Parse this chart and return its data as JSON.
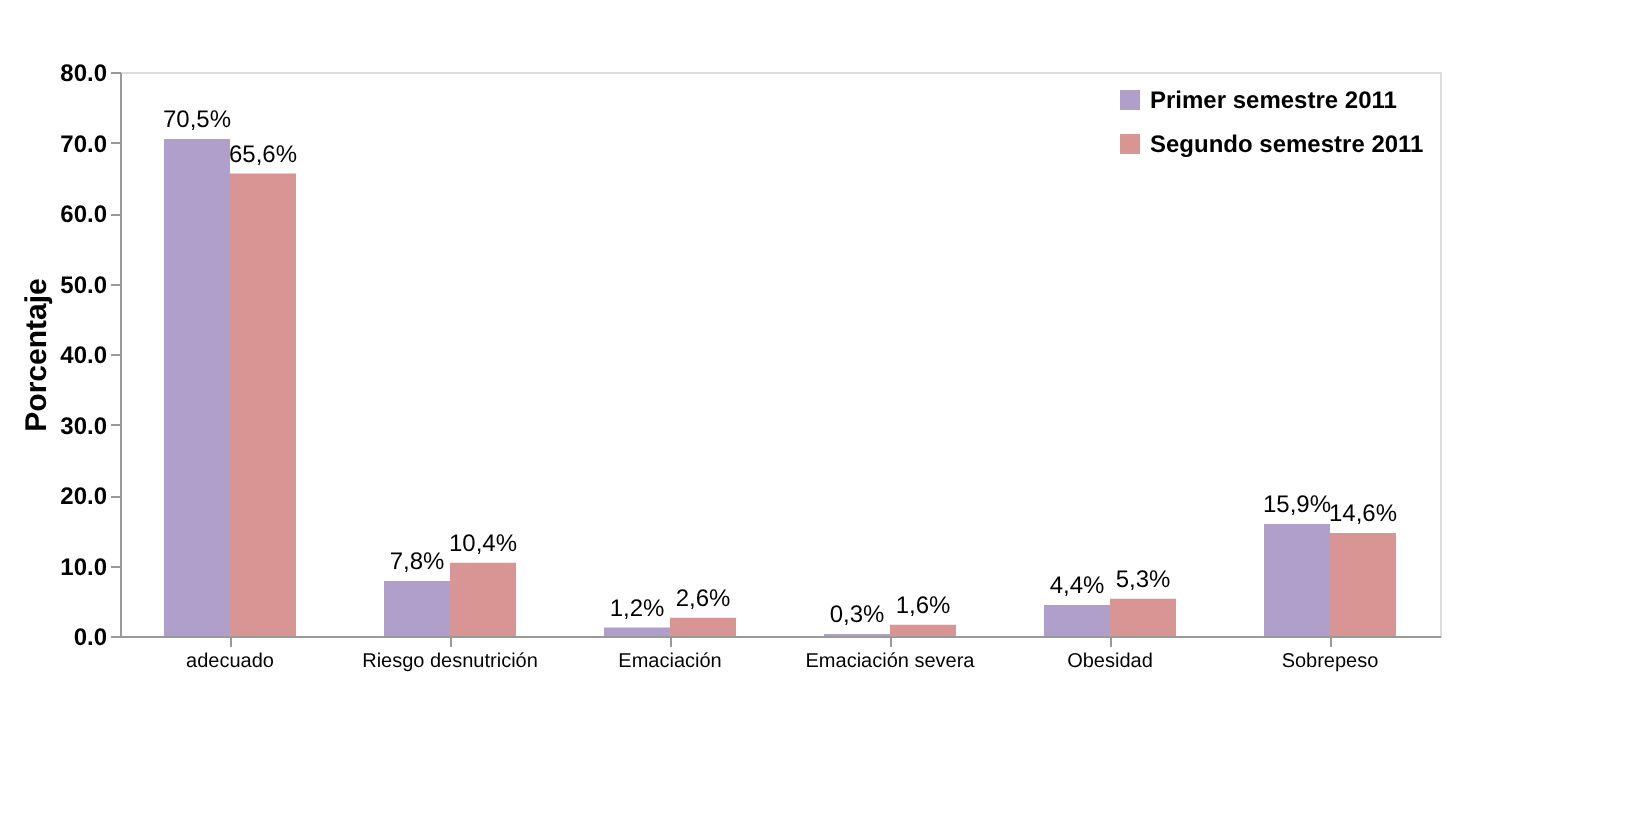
{
  "chart_data": {
    "type": "bar",
    "ylabel": "Porcentaje",
    "categories": [
      "adecuado",
      "Riesgo desnutrición",
      "Emaciación",
      "Emaciación severa",
      "Obesidad",
      "Sobrepeso"
    ],
    "series": [
      {
        "name": "Primer semestre 2011",
        "color": "#b09fca",
        "values": [
          70.5,
          7.8,
          1.2,
          0.3,
          4.4,
          15.9
        ],
        "value_labels": [
          "70,5%",
          "7,8%",
          "1,2%",
          "0,3%",
          "4,4%",
          "15,9%"
        ]
      },
      {
        "name": "Segundo semestre 2011",
        "color": "#d99594",
        "values": [
          65.6,
          10.4,
          2.6,
          1.6,
          5.3,
          14.6
        ],
        "value_labels": [
          "65,6%",
          "10,4%",
          "2,6%",
          "1,6%",
          "5,3%",
          "14,6%"
        ]
      }
    ],
    "ylim": [
      0,
      80
    ],
    "yticks": [
      {
        "value": 0,
        "label": "0.0"
      },
      {
        "value": 10,
        "label": "10.0"
      },
      {
        "value": 20,
        "label": "20.0"
      },
      {
        "value": 30,
        "label": "30.0"
      },
      {
        "value": 40,
        "label": "40.0"
      },
      {
        "value": 50,
        "label": "50.0"
      },
      {
        "value": 60,
        "label": "60.0"
      },
      {
        "value": 70,
        "label": "70.0"
      },
      {
        "value": 80,
        "label": "80.0"
      }
    ],
    "grid": false,
    "legend": "top right"
  }
}
